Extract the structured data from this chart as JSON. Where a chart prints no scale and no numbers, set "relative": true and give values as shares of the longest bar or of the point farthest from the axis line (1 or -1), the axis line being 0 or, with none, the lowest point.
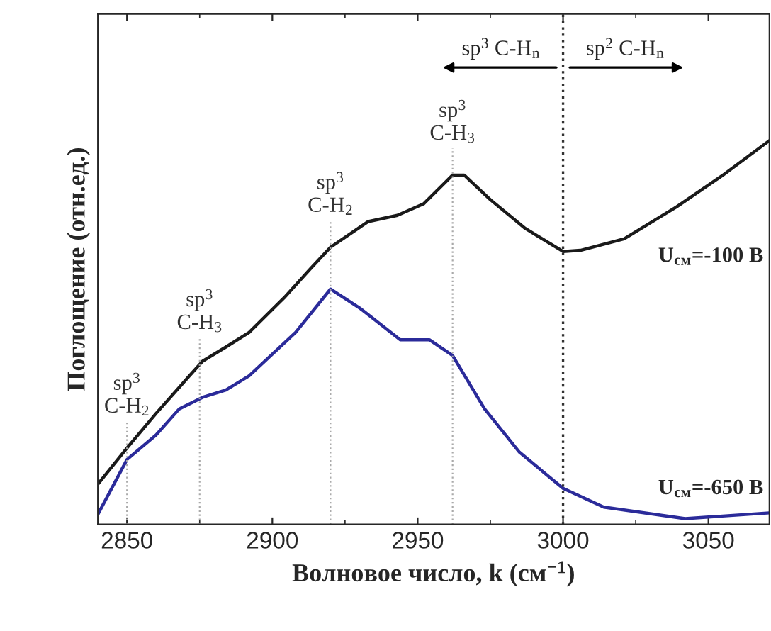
{
  "chart_data": {
    "type": "line",
    "relative": true,
    "xlabel": "Волновое число, k (см$^{−1}$)",
    "ylabel": "Поглощение (отн.ед.)",
    "xlim": [
      2840,
      3071
    ],
    "xticks": [
      2850,
      2900,
      2950,
      3000,
      3050
    ],
    "series": [
      {
        "name": "U$_{см}$=-100 В",
        "color": "#1a1a1a",
        "x": [
          2840,
          2850,
          2860,
          2871,
          2876,
          2884,
          2892,
          2904,
          2913,
          2920,
          2933,
          2943,
          2952,
          2962,
          2966,
          2975,
          2987,
          3000,
          3006,
          3021,
          3039,
          3055,
          3071
        ],
        "values": [
          0.105,
          0.199,
          0.289,
          0.383,
          0.425,
          0.462,
          0.5,
          0.59,
          0.665,
          0.722,
          0.789,
          0.805,
          0.835,
          0.91,
          0.91,
          0.846,
          0.771,
          0.711,
          0.714,
          0.744,
          0.827,
          0.91,
          1
        ]
      },
      {
        "name": "U$_{см}$=-650 В",
        "color": "#2b2b9a",
        "x": [
          2840,
          2850,
          2860,
          2868,
          2876,
          2884,
          2892,
          2908,
          2920,
          2930,
          2944,
          2954,
          2962,
          2973,
          2985,
          3000,
          3014,
          3042,
          3071
        ],
        "values": [
          0.026,
          0.169,
          0.233,
          0.301,
          0.331,
          0.35,
          0.387,
          0.5,
          0.613,
          0.564,
          0.481,
          0.481,
          0.44,
          0.301,
          0.188,
          0.094,
          0.045,
          0.015,
          0.03
        ]
      }
    ],
    "ref_lines": [
      {
        "axis": "x",
        "value": 2850,
        "label": "sp$^{3}$\nC-H$_{2}$",
        "color": "#aaaaaa",
        "line_style": "dotted"
      },
      {
        "axis": "x",
        "value": 2875,
        "label": "sp$^{3}$\nC-H$_{3}$",
        "color": "#aaaaaa",
        "line_style": "dotted"
      },
      {
        "axis": "x",
        "value": 2920,
        "label": "sp$^{3}$\nC-H$_{2}$",
        "color": "#aaaaaa",
        "line_style": "dotted"
      },
      {
        "axis": "x",
        "value": 2962,
        "label": "sp$^{3}$\nC-H$_{3}$",
        "color": "#aaaaaa",
        "line_style": "dotted"
      },
      {
        "axis": "x",
        "value": 3000,
        "color": "#333333",
        "line_style": "dotted"
      }
    ],
    "annotations": [
      "sp$^{3}$ C-H$_{n}$",
      "sp$^{2}$ C-H$_{n}$"
    ],
    "grid": false,
    "legend": false
  }
}
